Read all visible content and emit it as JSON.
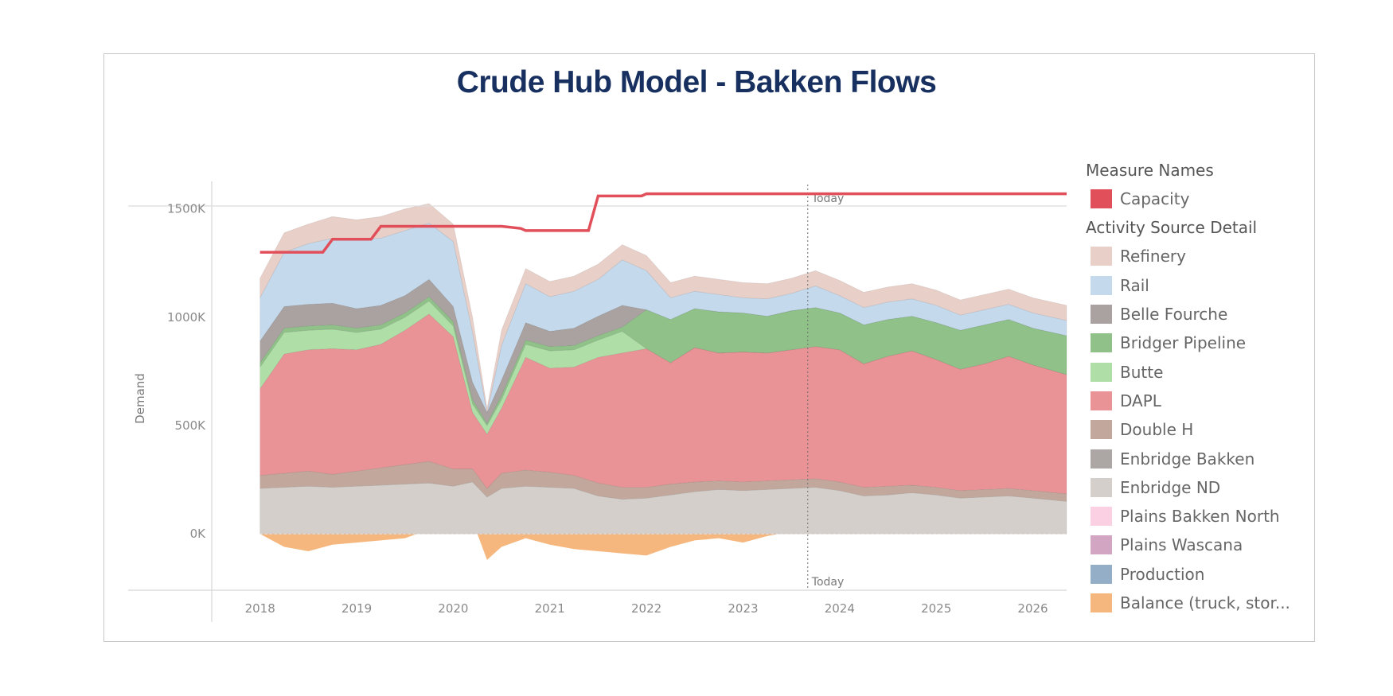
{
  "chart_data": {
    "type": "area",
    "title": "Crude Hub Model - Bakken Flows",
    "ylabel": "Demand",
    "xlabel": "",
    "x_ticks": [
      "2018",
      "2019",
      "2020",
      "2021",
      "2022",
      "2023",
      "2024",
      "2025",
      "2026"
    ],
    "y_ticks": [
      "1500K",
      "1000K",
      "500K",
      "0K"
    ],
    "y_tick_values": [
      1500,
      1000,
      500,
      0
    ],
    "ylim": [
      -260,
      1620
    ],
    "xlim": [
      2017.5,
      2026.35
    ],
    "today_label": "Today",
    "today_x": 2023.67,
    "legend_measure_title": "Measure Names",
    "legend_activity_title": "Activity Source Detail",
    "x": [
      2018.0,
      2018.25,
      2018.5,
      2018.75,
      2019.0,
      2019.25,
      2019.5,
      2019.75,
      2020.0,
      2020.2,
      2020.35,
      2020.5,
      2020.75,
      2021.0,
      2021.25,
      2021.5,
      2021.75,
      2022.0,
      2022.25,
      2022.5,
      2022.75,
      2023.0,
      2023.25,
      2023.5,
      2023.75,
      2024.0,
      2024.25,
      2024.5,
      2024.75,
      2025.0,
      2025.25,
      2025.5,
      2025.75,
      2026.0,
      2026.35
    ],
    "balance": [
      0,
      -60,
      -80,
      -50,
      -40,
      -30,
      -20,
      20,
      10,
      60,
      -120,
      -60,
      -20,
      -50,
      -70,
      -80,
      -90,
      -100,
      -60,
      -30,
      -20,
      -40,
      -10,
      10,
      20,
      20,
      15,
      10,
      10,
      10,
      10,
      10,
      10,
      10,
      10
    ],
    "series": [
      {
        "name": "Enbridge ND",
        "color": "#d4cfcb",
        "values": [
          210,
          215,
          220,
          215,
          220,
          225,
          230,
          235,
          220,
          240,
          170,
          210,
          220,
          215,
          210,
          175,
          160,
          165,
          180,
          195,
          205,
          200,
          205,
          210,
          215,
          200,
          175,
          180,
          190,
          180,
          165,
          170,
          175,
          165,
          150
        ]
      },
      {
        "name": "Enbridge Bakken",
        "color": "#aca7a5",
        "values": [
          0,
          0,
          0,
          0,
          0,
          0,
          0,
          0,
          0,
          0,
          0,
          0,
          0,
          0,
          0,
          0,
          0,
          0,
          0,
          0,
          0,
          0,
          0,
          0,
          0,
          0,
          0,
          0,
          0,
          0,
          0,
          0,
          0,
          0,
          0
        ]
      },
      {
        "name": "Double H",
        "color": "#c2a89c",
        "values": [
          60,
          65,
          70,
          60,
          70,
          80,
          90,
          100,
          80,
          60,
          40,
          70,
          75,
          70,
          60,
          60,
          55,
          50,
          50,
          45,
          40,
          40,
          40,
          40,
          40,
          40,
          40,
          40,
          35,
          35,
          35,
          35,
          35,
          35,
          35
        ]
      },
      {
        "name": "DAPL",
        "color": "#ea9396",
        "values": [
          400,
          550,
          560,
          580,
          560,
          570,
          620,
          680,
          610,
          260,
          250,
          300,
          520,
          480,
          500,
          580,
          620,
          640,
          560,
          620,
          590,
          600,
          590,
          600,
          610,
          610,
          570,
          600,
          620,
          590,
          560,
          580,
          610,
          580,
          550
        ]
      },
      {
        "name": "Butte",
        "color": "#afdea7",
        "values": [
          100,
          100,
          90,
          90,
          80,
          70,
          60,
          60,
          50,
          40,
          40,
          40,
          60,
          80,
          80,
          80,
          100,
          0,
          0,
          0,
          0,
          0,
          0,
          0,
          0,
          0,
          0,
          0,
          0,
          0,
          0,
          0,
          0,
          0,
          0
        ]
      },
      {
        "name": "Bridger Pipeline",
        "color": "#8fc189",
        "values": [
          20,
          20,
          20,
          20,
          20,
          20,
          20,
          20,
          20,
          20,
          10,
          20,
          20,
          20,
          20,
          20,
          20,
          180,
          200,
          180,
          190,
          180,
          170,
          180,
          180,
          170,
          180,
          170,
          160,
          170,
          180,
          180,
          170,
          170,
          180
        ]
      },
      {
        "name": "Belle Fourche",
        "color": "#a9a2a0",
        "values": [
          100,
          100,
          100,
          100,
          90,
          90,
          80,
          80,
          70,
          80,
          50,
          70,
          80,
          70,
          80,
          90,
          100,
          0,
          0,
          0,
          0,
          0,
          0,
          0,
          0,
          0,
          0,
          0,
          0,
          0,
          0,
          0,
          0,
          0,
          0
        ]
      },
      {
        "name": "Rail",
        "color": "#c4d9ec",
        "values": [
          200,
          250,
          280,
          300,
          320,
          310,
          300,
          260,
          300,
          230,
          0,
          160,
          180,
          160,
          170,
          170,
          210,
          180,
          100,
          80,
          80,
          70,
          80,
          80,
          100,
          80,
          80,
          80,
          80,
          80,
          70,
          70,
          70,
          70,
          70
        ]
      },
      {
        "name": "Refinery",
        "color": "#e8cfc8",
        "values": [
          90,
          90,
          90,
          100,
          90,
          100,
          100,
          90,
          80,
          70,
          20,
          70,
          70,
          70,
          70,
          70,
          70,
          70,
          70,
          70,
          70,
          70,
          70,
          70,
          70,
          70,
          70,
          70,
          70,
          70,
          70,
          70,
          70,
          70,
          70
        ]
      },
      {
        "name": "Plains Bakken North",
        "color": "#fbd0e2",
        "values": [
          0,
          0,
          0,
          0,
          0,
          0,
          0,
          0,
          0,
          0,
          0,
          0,
          0,
          0,
          0,
          0,
          0,
          0,
          0,
          0,
          0,
          0,
          0,
          0,
          0,
          0,
          0,
          0,
          0,
          0,
          0,
          0,
          0,
          0,
          0
        ]
      },
      {
        "name": "Plains Wascana",
        "color": "#d2a5c3",
        "values": [
          0,
          0,
          0,
          0,
          0,
          0,
          0,
          0,
          0,
          0,
          0,
          0,
          0,
          0,
          0,
          0,
          0,
          0,
          0,
          0,
          0,
          0,
          0,
          0,
          0,
          0,
          0,
          0,
          0,
          0,
          0,
          0,
          0,
          0,
          0
        ]
      },
      {
        "name": "Production",
        "color": "#94aec8",
        "values": [
          0,
          0,
          0,
          0,
          0,
          0,
          0,
          0,
          0,
          0,
          0,
          0,
          0,
          0,
          0,
          0,
          0,
          0,
          0,
          0,
          0,
          0,
          0,
          0,
          0,
          0,
          0,
          0,
          0,
          0,
          0,
          0,
          0,
          0,
          0
        ]
      }
    ],
    "balance_series": {
      "name": "Balance (truck, stor...",
      "color": "#f6b77e"
    },
    "capacity": {
      "name": "Capacity",
      "color": "#e1505a",
      "points": [
        [
          2018.0,
          1300
        ],
        [
          2018.65,
          1300
        ],
        [
          2018.75,
          1360
        ],
        [
          2019.15,
          1360
        ],
        [
          2019.25,
          1420
        ],
        [
          2020.5,
          1420
        ],
        [
          2020.7,
          1410
        ],
        [
          2020.75,
          1400
        ],
        [
          2021.4,
          1400
        ],
        [
          2021.5,
          1560
        ],
        [
          2021.95,
          1560
        ],
        [
          2022.0,
          1570
        ],
        [
          2026.35,
          1570
        ]
      ]
    },
    "legend": {
      "measure_names": [
        {
          "label": "Capacity",
          "color": "#e1505a"
        }
      ],
      "activity": [
        {
          "label": "Refinery",
          "color": "#e8cfc8"
        },
        {
          "label": "Rail",
          "color": "#c4d9ec"
        },
        {
          "label": "Belle Fourche",
          "color": "#a9a2a0"
        },
        {
          "label": "Bridger Pipeline",
          "color": "#8fc189"
        },
        {
          "label": "Butte",
          "color": "#afdea7"
        },
        {
          "label": "DAPL",
          "color": "#ea9396"
        },
        {
          "label": "Double H",
          "color": "#c2a89c"
        },
        {
          "label": "Enbridge Bakken",
          "color": "#aca7a5"
        },
        {
          "label": "Enbridge ND",
          "color": "#d4cfcb"
        },
        {
          "label": "Plains Bakken North",
          "color": "#fbd0e2"
        },
        {
          "label": "Plains Wascana",
          "color": "#d2a5c3"
        },
        {
          "label": "Production",
          "color": "#94aec8"
        },
        {
          "label": "Balance (truck, stor...",
          "color": "#f6b77e"
        }
      ]
    },
    "grid": false
  }
}
